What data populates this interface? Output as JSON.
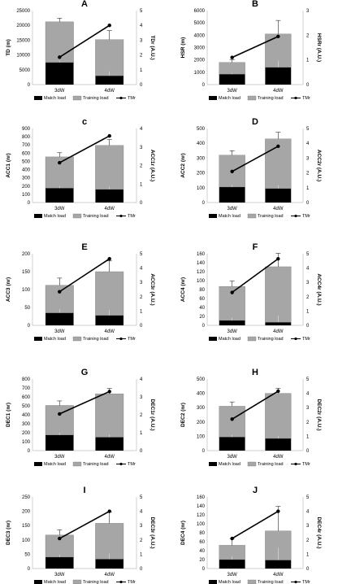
{
  "legend": {
    "match": "Match load",
    "training": "Training load",
    "tmr": "TMr"
  },
  "colors": {
    "match": "#000000",
    "training": "#a6a6a6",
    "line": "#000000"
  },
  "chart_data": [
    {
      "type": "bar",
      "title": "A",
      "categories": [
        "3dW",
        "4dW"
      ],
      "ylabel": "TD (m)",
      "y2label": "TDr (A.U.)",
      "ylim": [
        0,
        25000
      ],
      "yticks": [
        0,
        5000,
        10000,
        15000,
        20000,
        25000
      ],
      "y2lim": [
        0,
        5
      ],
      "y2ticks": [
        0,
        1,
        2,
        3,
        4,
        5
      ],
      "series": [
        {
          "name": "Match load",
          "values": [
            7500,
            3000
          ]
        },
        {
          "name": "Training load",
          "values": [
            13700,
            12200
          ]
        },
        {
          "name": "TMr",
          "values": [
            1.85,
            4.0
          ]
        }
      ],
      "errors": [
        1200,
        3000
      ]
    },
    {
      "type": "bar",
      "title": "B",
      "categories": [
        "3dW",
        "4dW"
      ],
      "ylabel": "HSR (m)",
      "y2label": "HSRr (A.U.)",
      "ylim": [
        0,
        6000
      ],
      "yticks": [
        0,
        1000,
        2000,
        3000,
        4000,
        5000,
        6000
      ],
      "y2lim": [
        0,
        3
      ],
      "y2ticks": [
        0,
        1,
        2,
        3
      ],
      "series": [
        {
          "name": "Match load",
          "values": [
            850,
            1400
          ]
        },
        {
          "name": "Training load",
          "values": [
            950,
            2700
          ]
        },
        {
          "name": "TMr",
          "values": [
            1.1,
            1.95
          ]
        }
      ],
      "errors": [
        200,
        1100
      ]
    },
    {
      "type": "bar",
      "title": "c",
      "categories": [
        "3dW",
        "4dW"
      ],
      "ylabel": "ACC1 (nr)",
      "y2label": "ACC1r (A.U.)",
      "ylim": [
        0,
        900
      ],
      "yticks": [
        0,
        100,
        200,
        300,
        400,
        500,
        600,
        700,
        800,
        900
      ],
      "y2lim": [
        0,
        4
      ],
      "y2ticks": [
        0,
        1,
        2,
        3,
        4
      ],
      "series": [
        {
          "name": "Match load",
          "values": [
            175,
            160
          ]
        },
        {
          "name": "Training load",
          "values": [
            380,
            535
          ]
        },
        {
          "name": "TMr",
          "values": [
            2.15,
            3.6
          ]
        }
      ],
      "errors": [
        50,
        70
      ]
    },
    {
      "type": "bar",
      "title": "D",
      "categories": [
        "3dW",
        "4dW"
      ],
      "ylabel": "ACC2 (nr)",
      "y2label": "ACC2r (A.U.)",
      "ylim": [
        0,
        500
      ],
      "yticks": [
        0,
        100,
        200,
        300,
        400,
        500
      ],
      "y2lim": [
        0,
        5
      ],
      "y2ticks": [
        0,
        1,
        2,
        3,
        4,
        5
      ],
      "series": [
        {
          "name": "Match load",
          "values": [
            105,
            95
          ]
        },
        {
          "name": "Training load",
          "values": [
            215,
            335
          ]
        },
        {
          "name": "TMr",
          "values": [
            2.1,
            3.8
          ]
        }
      ],
      "errors": [
        30,
        45
      ]
    },
    {
      "type": "bar",
      "title": "E",
      "categories": [
        "3dW",
        "4dW"
      ],
      "ylabel": "ACC3 (nr)",
      "y2label": "ACC3r (A.U.)",
      "ylim": [
        0,
        200
      ],
      "yticks": [
        0,
        50,
        100,
        150,
        200
      ],
      "y2lim": [
        0,
        5
      ],
      "y2ticks": [
        0,
        1,
        2,
        3,
        4,
        5
      ],
      "series": [
        {
          "name": "Match load",
          "values": [
            35,
            28
          ]
        },
        {
          "name": "Training load",
          "values": [
            77,
            122
          ]
        },
        {
          "name": "TMr",
          "values": [
            2.35,
            4.65
          ]
        }
      ],
      "errors": [
        20,
        30
      ]
    },
    {
      "type": "bar",
      "title": "F",
      "categories": [
        "3dW",
        "4dW"
      ],
      "ylabel": "ACC4 (nr)",
      "y2label": "ACC4r (A.U.)",
      "ylim": [
        0,
        160
      ],
      "yticks": [
        0,
        20,
        40,
        60,
        80,
        100,
        120,
        140,
        160
      ],
      "y2lim": [
        0,
        5
      ],
      "y2ticks": [
        0,
        1,
        2,
        3,
        4,
        5
      ],
      "series": [
        {
          "name": "Match load",
          "values": [
            11,
            7
          ]
        },
        {
          "name": "Training load",
          "values": [
            76,
            124
          ]
        },
        {
          "name": "TMr",
          "values": [
            2.3,
            4.65
          ]
        }
      ],
      "errors": [
        12,
        30
      ]
    },
    {
      "type": "bar",
      "title": "G",
      "categories": [
        "3dW",
        "4dW"
      ],
      "ylabel": "DEC1 (nr)",
      "y2label": "DEC1r (A.U.)",
      "ylim": [
        0,
        800
      ],
      "yticks": [
        0,
        100,
        200,
        300,
        400,
        500,
        600,
        700,
        800
      ],
      "y2lim": [
        0,
        4
      ],
      "y2ticks": [
        0,
        1,
        2,
        3,
        4
      ],
      "series": [
        {
          "name": "Match load",
          "values": [
            175,
            150
          ]
        },
        {
          "name": "Training load",
          "values": [
            330,
            485
          ]
        },
        {
          "name": "TMr",
          "values": [
            2.05,
            3.3
          ]
        }
      ],
      "errors": [
        50,
        60
      ]
    },
    {
      "type": "bar",
      "title": "H",
      "categories": [
        "3dW",
        "4dW"
      ],
      "ylabel": "DEC2 (nr)",
      "y2label": "DEC2r (A.U.)",
      "ylim": [
        0,
        500
      ],
      "yticks": [
        0,
        100,
        200,
        300,
        400,
        500
      ],
      "y2lim": [
        0,
        5
      ],
      "y2ticks": [
        0,
        1,
        2,
        3,
        4,
        5
      ],
      "series": [
        {
          "name": "Match load",
          "values": [
            95,
            85
          ]
        },
        {
          "name": "Training load",
          "values": [
            215,
            315
          ]
        },
        {
          "name": "TMr",
          "values": [
            2.2,
            4.15
          ]
        }
      ],
      "errors": [
        30,
        35
      ]
    },
    {
      "type": "bar",
      "title": "I",
      "categories": [
        "3dW",
        "4dW"
      ],
      "ylabel": "DEC3 (nr)",
      "y2label": "DEC3r (A.U.)",
      "ylim": [
        0,
        250
      ],
      "yticks": [
        0,
        50,
        100,
        150,
        200,
        250
      ],
      "y2lim": [
        0,
        5
      ],
      "y2ticks": [
        0,
        1,
        2,
        3,
        4,
        5
      ],
      "series": [
        {
          "name": "Match load",
          "values": [
            40,
            33
          ]
        },
        {
          "name": "Training load",
          "values": [
            77,
            125
          ]
        },
        {
          "name": "TMr",
          "values": [
            2.1,
            4.0
          ]
        }
      ],
      "errors": [
        18,
        40
      ]
    },
    {
      "type": "bar",
      "title": "J",
      "categories": [
        "3dW",
        "4dW"
      ],
      "ylabel": "DEC4 (nr)",
      "y2label": "DEC4r (A.U.)",
      "ylim": [
        0,
        160
      ],
      "yticks": [
        0,
        20,
        40,
        60,
        80,
        100,
        120,
        140,
        160
      ],
      "y2lim": [
        0,
        5
      ],
      "y2ticks": [
        0,
        1,
        2,
        3,
        4,
        5
      ],
      "series": [
        {
          "name": "Match load",
          "values": [
            20,
            19
          ]
        },
        {
          "name": "Training load",
          "values": [
            32,
            65
          ]
        },
        {
          "name": "TMr",
          "values": [
            2.1,
            4.0
          ]
        }
      ],
      "errors": [
        15,
        55
      ]
    }
  ]
}
